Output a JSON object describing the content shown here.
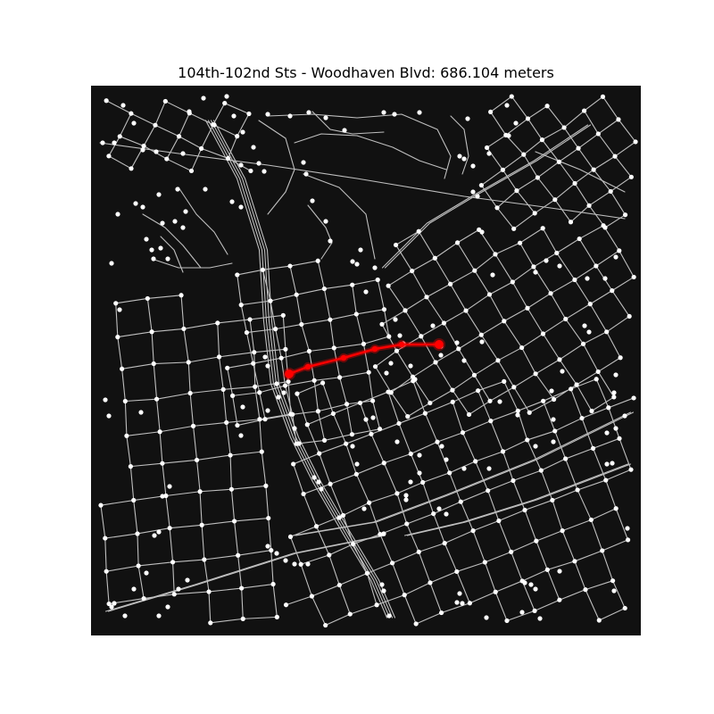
{
  "title": "104th-102nd Sts - Woodhaven Blvd: 686.104 meters",
  "colors": {
    "background": "#111111",
    "street": "#bfbfbf",
    "node": "#ffffff",
    "route": "#ff0000"
  },
  "map": {
    "type": "street-network-route",
    "route": {
      "from": "104th-102nd Sts",
      "to": "Woodhaven Blvd",
      "length_m": 686.104
    }
  }
}
